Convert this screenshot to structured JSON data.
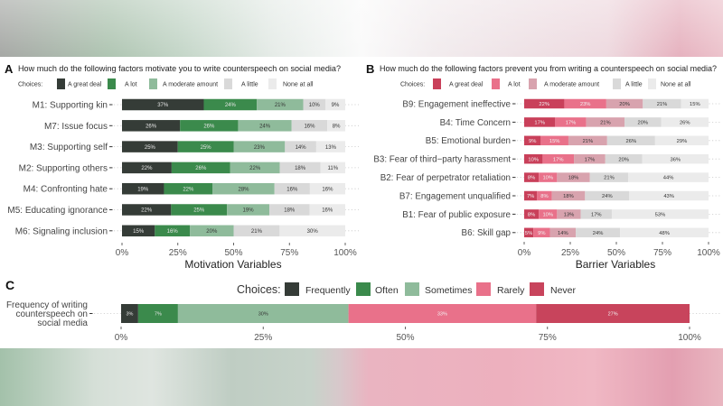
{
  "chart_data": [
    {
      "panel": "A",
      "type": "bar",
      "orientation": "horizontal",
      "stacked": true,
      "title": "How much do the following factors motivate you to write counterspeech on social media?",
      "legend_title": "Choices:",
      "legend_position": "top",
      "categories": [
        "M1: Supporting kin",
        "M7: Issue focus",
        "M3: Supporting self",
        "M2: Supporting others",
        "M4: Confronting hate",
        "M5: Educating ignorance",
        "M6: Signaling inclusion"
      ],
      "series": [
        {
          "name": "A great deal",
          "color": "#353c37",
          "text_color": "#e6e6e6",
          "values": [
            37,
            26,
            25,
            22,
            19,
            22,
            15
          ]
        },
        {
          "name": "A lot",
          "color": "#3b8a4c",
          "text_color": "#e6e6e6",
          "values": [
            24,
            26,
            25,
            26,
            22,
            25,
            16
          ]
        },
        {
          "name": "A moderate amount",
          "color": "#8fbb9b",
          "text_color": "#333333",
          "values": [
            21,
            24,
            23,
            22,
            28,
            19,
            20
          ]
        },
        {
          "name": "A little",
          "color": "#d9d9d9",
          "text_color": "#333333",
          "values": [
            10,
            16,
            14,
            18,
            16,
            18,
            21
          ]
        },
        {
          "name": "None at all",
          "color": "#ebebeb",
          "text_color": "#333333",
          "values": [
            9,
            8,
            13,
            11,
            16,
            16,
            30
          ]
        }
      ],
      "value_suffix": "%",
      "xlabel": "Motivation Variables",
      "xticks": [
        "0%",
        "25%",
        "50%",
        "75%",
        "100%"
      ],
      "xtick_values": [
        0,
        25,
        50,
        75,
        100
      ],
      "xlim": [
        0,
        100
      ],
      "grid": false
    },
    {
      "panel": "B",
      "type": "bar",
      "orientation": "horizontal",
      "stacked": true,
      "title": "How much do the following factors prevent you from writing a counterspeech on social media?",
      "legend_title": "Choices:",
      "legend_position": "top",
      "categories": [
        "B9: Engagement ineffective",
        "B4: Time Concern",
        "B5: Emotional burden",
        "B3: Fear of third−party harassment",
        "B2: Fear of perpetrator retaliation",
        "B7: Engagement unqualified",
        "B1: Fear of public exposure",
        "B6: Skill gap"
      ],
      "series": [
        {
          "name": "A great deal",
          "color": "#c9405a",
          "text_color": "#f2f2f2",
          "values": [
            22,
            17,
            9,
            10,
            8,
            7,
            8,
            5
          ]
        },
        {
          "name": "A lot",
          "color": "#e9718a",
          "text_color": "#f2f2f2",
          "values": [
            23,
            17,
            15,
            17,
            10,
            8,
            10,
            9
          ]
        },
        {
          "name": "A moderate amount",
          "color": "#d8a3ae",
          "text_color": "#333333",
          "values": [
            20,
            21,
            21,
            17,
            18,
            18,
            13,
            14
          ]
        },
        {
          "name": "A little",
          "color": "#d9d9d9",
          "text_color": "#333333",
          "values": [
            21,
            20,
            26,
            20,
            21,
            24,
            17,
            24
          ]
        },
        {
          "name": "None at all",
          "color": "#ebebeb",
          "text_color": "#333333",
          "values": [
            15,
            26,
            29,
            36,
            44,
            43,
            53,
            48
          ]
        }
      ],
      "value_suffix": "%",
      "xlabel": "Barrier Variables",
      "xticks": [
        "0%",
        "25%",
        "50%",
        "75%",
        "100%"
      ],
      "xtick_values": [
        0,
        25,
        50,
        75,
        100
      ],
      "xlim": [
        0,
        100
      ],
      "grid": false
    },
    {
      "panel": "C",
      "type": "bar",
      "orientation": "horizontal",
      "stacked": true,
      "legend_title": "Choices:",
      "legend_position": "top",
      "categories": [
        [
          "Frequency of writing",
          "counterspeech on",
          "social media"
        ]
      ],
      "series": [
        {
          "name": "Frequently",
          "color": "#353c37",
          "text_color": "#e6e6e6",
          "values": [
            3
          ]
        },
        {
          "name": "Often",
          "color": "#3b8a4c",
          "text_color": "#e6e6e6",
          "values": [
            7
          ]
        },
        {
          "name": "Sometimes",
          "color": "#8fbb9b",
          "text_color": "#333333",
          "values": [
            30
          ]
        },
        {
          "name": "Rarely",
          "color": "#e9718a",
          "text_color": "#f2f2f2",
          "values": [
            33
          ]
        },
        {
          "name": "Never",
          "color": "#c8445c",
          "text_color": "#f2f2f2",
          "values": [
            27
          ]
        }
      ],
      "value_suffix": "%",
      "xticks": [
        "0%",
        "25%",
        "50%",
        "75%",
        "100%"
      ],
      "xtick_values": [
        0,
        25,
        50,
        75,
        100
      ],
      "xlim": [
        0,
        100
      ],
      "grid": false
    }
  ]
}
